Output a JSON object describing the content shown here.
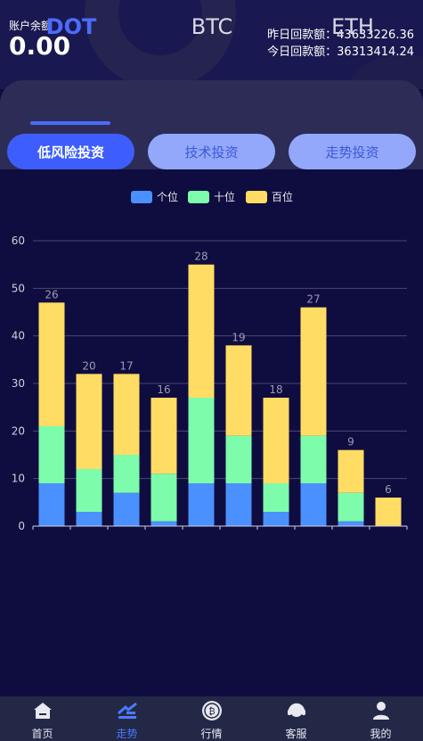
{
  "account": {
    "balance_label": "账户余额",
    "balance_value": "0.00",
    "yesterday": "昨日回款额：43633226.36",
    "today": "今日回款额：36313414.24"
  },
  "tabs": [
    {
      "label": "DOT",
      "active": true
    },
    {
      "label": "BTC",
      "active": false
    },
    {
      "label": "ETH",
      "active": false
    }
  ],
  "pills": [
    {
      "label": "低风险投资",
      "active": true
    },
    {
      "label": "技术投资",
      "active": false
    },
    {
      "label": "走势投资",
      "active": false
    }
  ],
  "colors": {
    "accent": "#3d5efc",
    "ones": "#4a90ff",
    "tens": "#7dfcab",
    "hundreds": "#ffdc63"
  },
  "chart_data": {
    "type": "bar",
    "stacked": true,
    "categories": [
      "",
      "",
      "",
      "",
      "",
      "",
      "",
      "",
      "",
      ""
    ],
    "series": [
      {
        "name": "个位",
        "values": [
          9,
          3,
          7,
          1,
          9,
          9,
          3,
          9,
          1,
          0
        ]
      },
      {
        "name": "十位",
        "values": [
          12,
          9,
          8,
          10,
          18,
          10,
          6,
          10,
          6,
          0
        ]
      },
      {
        "name": "百位",
        "values": [
          26,
          20,
          17,
          16,
          28,
          19,
          18,
          27,
          9,
          6
        ]
      }
    ],
    "data_labels": [
      [
        "9",
        "12",
        "26"
      ],
      [
        "3",
        "9",
        "20"
      ],
      [
        "7",
        "8",
        "17"
      ],
      [
        "1",
        "10",
        "16"
      ],
      [
        "9",
        "18",
        "28"
      ],
      [
        "9",
        "10",
        "19"
      ],
      [
        "3",
        "6",
        "18"
      ],
      [
        "9",
        "10",
        "27"
      ],
      [
        "1",
        "6",
        "9"
      ],
      [
        "",
        "0",
        "6"
      ]
    ],
    "ylim": [
      0,
      60
    ],
    "yticks": [
      0,
      10,
      20,
      30,
      40,
      50,
      60
    ],
    "grid": true,
    "legend": "top-center"
  },
  "nav": [
    {
      "label": "首页",
      "icon": "home-icon",
      "active": false
    },
    {
      "label": "走势",
      "icon": "trend-icon",
      "active": true
    },
    {
      "label": "行情",
      "icon": "bitcoin-icon",
      "active": false
    },
    {
      "label": "客服",
      "icon": "headset-icon",
      "active": false
    },
    {
      "label": "我的",
      "icon": "user-icon",
      "active": false
    }
  ]
}
